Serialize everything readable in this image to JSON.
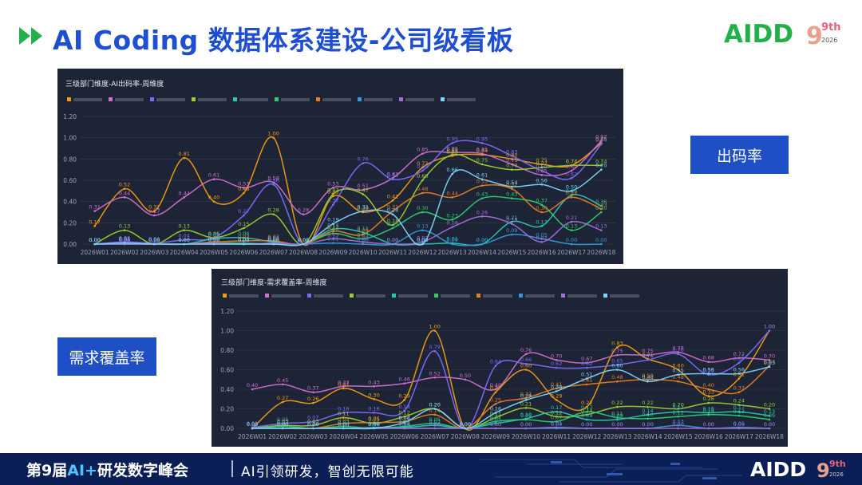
{
  "header": {
    "title": "AI Coding 数据体系建设-公司级看板",
    "logo": {
      "text": "AIDD",
      "superscript": "9th",
      "year": "2026"
    }
  },
  "callouts": {
    "output_rate": "出码率",
    "coverage_rate": "需求覆盖率"
  },
  "footer": {
    "event_prefix": "第9届",
    "event_highlight": "AI+",
    "event_suffix": "研发数字峰会",
    "slogan": "AI引领研发，智创无限可能",
    "logo": {
      "text": "AIDD",
      "superscript": "9th",
      "year": "2026"
    }
  },
  "colors": {
    "title_blue": "#1f4fd1",
    "logo_green": "#22b04b",
    "panel_bg": "#1d2436",
    "callout_bg": "#1f4fc4",
    "footer_bg": "#0b1f56"
  },
  "chart_data": [
    {
      "type": "line",
      "title": "三级部门维度-AI出码率-周维度",
      "ylim": [
        0,
        1.2
      ],
      "yticks": [
        "0.00",
        "0.20",
        "0.40",
        "0.60",
        "0.80",
        "1.00",
        "1.20"
      ],
      "grid": true,
      "legend": "top-left",
      "x": [
        "2026W01",
        "2026W02",
        "2026W03",
        "2026W04",
        "2026W05",
        "2026W06",
        "2026W07",
        "2026W08",
        "2026W09",
        "2026W10",
        "2026W11",
        "2026W12",
        "2026W13",
        "2026W14",
        "2026W15",
        "2026W16",
        "2026W17",
        "2026W18"
      ],
      "series": [
        {
          "color": "#f39c12",
          "values": [
            0.17,
            0.52,
            0.31,
            0.81,
            0.4,
            0.48,
            1.0,
            0.0,
            0.45,
            0.3,
            0.41,
            0.72,
            0.83,
            0.84,
            0.8,
            0.75,
            0.74,
            0.95
          ]
        },
        {
          "color": "#d070d0",
          "values": [
            0.31,
            0.44,
            0.27,
            0.44,
            0.61,
            0.53,
            0.58,
            0.28,
            0.53,
            0.51,
            0.62,
            0.85,
            0.86,
            0.85,
            0.75,
            0.65,
            0.69,
            0.97
          ]
        },
        {
          "color": "#7b6cff",
          "values": [
            0.0,
            0.02,
            0.01,
            0.04,
            0.06,
            0.27,
            0.56,
            0.0,
            0.37,
            0.76,
            0.61,
            0.69,
            0.95,
            0.95,
            0.83,
            0.69,
            0.62,
            0.94
          ]
        },
        {
          "color": "#9acd32",
          "values": [
            0.0,
            0.13,
            0.0,
            0.13,
            0.06,
            0.15,
            0.28,
            0.0,
            0.47,
            0.47,
            0.18,
            0.6,
            0.84,
            0.75,
            0.7,
            0.72,
            0.74,
            0.74
          ]
        },
        {
          "color": "#29c5b5",
          "values": [
            0.0,
            0.0,
            0.0,
            0.0,
            0.05,
            0.06,
            0.02,
            0.0,
            0.14,
            0.11,
            0.0,
            0.0,
            0.01,
            0.0,
            0.21,
            0.17,
            0.46,
            0.36
          ]
        },
        {
          "color": "#2ecc71",
          "values": [
            0.0,
            0.0,
            0.0,
            0.0,
            0.01,
            0.01,
            0.0,
            0.0,
            0.1,
            0.05,
            0.15,
            0.3,
            0.23,
            0.43,
            0.43,
            0.37,
            0.13,
            0.3
          ]
        },
        {
          "color": "#e67e22",
          "values": [
            0.0,
            0.0,
            0.0,
            0.0,
            0.02,
            0.03,
            0.03,
            0.0,
            0.12,
            0.09,
            0.31,
            0.48,
            0.44,
            0.55,
            0.52,
            0.3,
            0.44,
            0.33
          ]
        },
        {
          "color": "#3498db",
          "values": [
            0.0,
            0.0,
            0.0,
            0.0,
            0.0,
            0.0,
            0.0,
            0.0,
            0.01,
            0.0,
            0.0,
            0.13,
            0.0,
            0.0,
            0.09,
            0.05,
            0.0,
            0.0
          ]
        },
        {
          "color": "#a36fd8",
          "values": [
            0.0,
            0.0,
            0.0,
            0.0,
            0.01,
            0.0,
            0.01,
            0.0,
            0.05,
            0.02,
            0.0,
            0.02,
            0.16,
            0.26,
            0.19,
            0.02,
            0.21,
            0.13
          ]
        },
        {
          "color": "#7dd3fc",
          "values": [
            0.0,
            0.01,
            0.0,
            0.0,
            0.0,
            0.0,
            0.0,
            0.0,
            0.19,
            0.31,
            0.28,
            0.0,
            0.66,
            0.61,
            0.54,
            0.56,
            0.5,
            0.7
          ]
        }
      ]
    },
    {
      "type": "line",
      "title": "三级部门维度-需求覆盖率-周维度",
      "ylim": [
        0,
        1.2
      ],
      "yticks": [
        "0.00",
        "0.20",
        "0.40",
        "0.60",
        "0.80",
        "1.00",
        "1.20"
      ],
      "grid": true,
      "legend": "top-left",
      "x": [
        "2026W01",
        "2026W02",
        "2026W03",
        "2026W04",
        "2026W05",
        "2026W06",
        "2026W07",
        "2026W08",
        "2026W09",
        "2026W10",
        "2026W11",
        "2026W12",
        "2026W13",
        "2026W14",
        "2026W15",
        "2026W16",
        "2026W17",
        "2026W18"
      ],
      "series": [
        {
          "color": "#f39c12",
          "values": [
            0.0,
            0.27,
            0.26,
            0.41,
            0.3,
            0.29,
            1.0,
            0.0,
            0.37,
            0.6,
            0.29,
            0.22,
            0.83,
            0.71,
            0.6,
            0.33,
            0.51,
            1.0
          ]
        },
        {
          "color": "#d070d0",
          "values": [
            0.4,
            0.45,
            0.37,
            0.43,
            0.43,
            0.46,
            0.52,
            0.5,
            0.4,
            0.76,
            0.7,
            0.67,
            0.75,
            0.75,
            0.78,
            0.68,
            0.72,
            0.7
          ]
        },
        {
          "color": "#7b6cff",
          "values": [
            0.01,
            0.05,
            0.07,
            0.16,
            0.16,
            0.18,
            0.79,
            0.0,
            0.64,
            0.66,
            0.62,
            0.62,
            0.65,
            0.7,
            0.76,
            0.55,
            0.67,
            1.0
          ]
        },
        {
          "color": "#9acd32",
          "values": [
            0.0,
            0.03,
            0.03,
            0.11,
            0.05,
            0.12,
            0.2,
            0.0,
            0.11,
            0.21,
            0.12,
            0.14,
            0.22,
            0.22,
            0.2,
            0.26,
            0.24,
            0.2
          ]
        },
        {
          "color": "#29c5b5",
          "values": [
            0.0,
            0.0,
            0.0,
            0.0,
            0.01,
            0.01,
            0.03,
            0.0,
            0.05,
            0.1,
            0.17,
            0.09,
            0.09,
            0.14,
            0.17,
            0.16,
            0.17,
            0.13
          ]
        },
        {
          "color": "#2ecc71",
          "values": [
            0.0,
            0.02,
            0.0,
            0.02,
            0.0,
            0.02,
            0.05,
            0.0,
            0.07,
            0.09,
            0.07,
            0.17,
            0.11,
            0.1,
            0.12,
            0.14,
            0.13,
            0.09
          ]
        },
        {
          "color": "#e67e22",
          "values": [
            0.0,
            0.0,
            0.0,
            0.05,
            0.06,
            0.07,
            0.14,
            0.0,
            0.25,
            0.31,
            0.41,
            0.45,
            0.48,
            0.5,
            0.48,
            0.4,
            0.37,
            0.64
          ]
        },
        {
          "color": "#3498db",
          "values": [
            0.0,
            0.0,
            0.0,
            0.0,
            0.0,
            0.0,
            0.0,
            0.0,
            0.0,
            0.0,
            0.0,
            0.0,
            0.0,
            0.0,
            0.03,
            0.0,
            0.01,
            0.0
          ]
        },
        {
          "color": "#a36fd8",
          "values": [
            0.0,
            0.0,
            0.0,
            0.0,
            0.0,
            0.0,
            0.0,
            0.0,
            0.0,
            0.0,
            0.01,
            0.0,
            0.0,
            0.0,
            0.0,
            0.0,
            0.0,
            0.0
          ]
        },
        {
          "color": "#7dd3fc",
          "values": [
            0.0,
            0.0,
            0.0,
            0.0,
            0.0,
            0.06,
            0.2,
            0.0,
            0.16,
            0.29,
            0.38,
            0.51,
            0.6,
            0.48,
            0.55,
            0.56,
            0.56,
            0.63
          ]
        }
      ]
    }
  ]
}
